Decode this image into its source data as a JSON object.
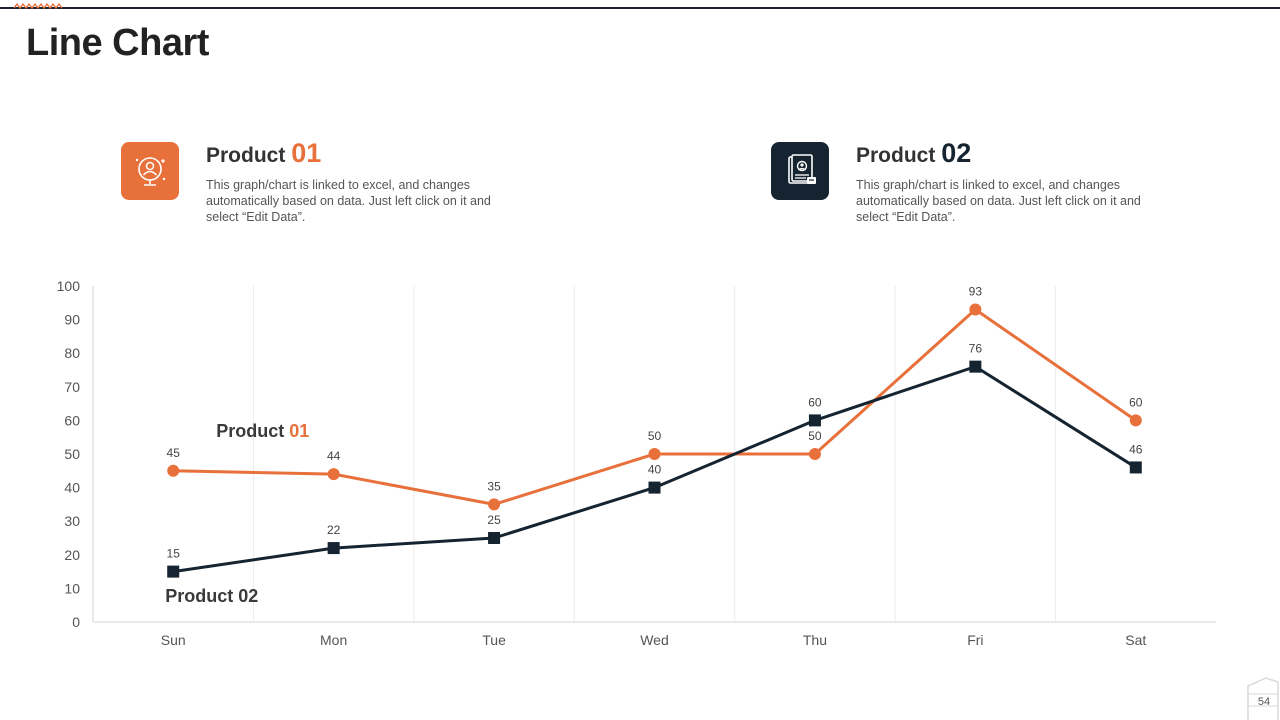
{
  "page": {
    "title": "Line Chart",
    "page_number": "54"
  },
  "cards": [
    {
      "label": "Product",
      "number": "01",
      "description": "This graph/chart is linked to excel, and changes automatically based on data. Just left click on it and select “Edit Data”.",
      "icon": "presentation-user-icon",
      "color": "#e8703a"
    },
    {
      "label": "Product",
      "number": "02",
      "description": "This graph/chart is linked to excel, and changes automatically based on data. Just left click on it and select “Edit Data”.",
      "icon": "profile-document-icon",
      "color": "#152430"
    }
  ],
  "chart_data": {
    "type": "line",
    "categories": [
      "Sun",
      "Mon",
      "Tue",
      "Wed",
      "Thu",
      "Fri",
      "Sat"
    ],
    "series": [
      {
        "name": "Product 01",
        "label": "Product",
        "label_num": "01",
        "values": [
          45,
          44,
          35,
          50,
          50,
          93,
          60
        ],
        "color": "#e8703a",
        "marker": "circle"
      },
      {
        "name": "Product 02",
        "label": "Product",
        "label_num": "02",
        "values": [
          15,
          22,
          25,
          40,
          60,
          76,
          46
        ],
        "color": "#152430",
        "marker": "square"
      }
    ],
    "ylim": [
      0,
      100
    ],
    "yticks": [
      0,
      10,
      20,
      30,
      40,
      50,
      60,
      70,
      80,
      90,
      100
    ],
    "grid": "vertical",
    "title": "",
    "xlabel": "",
    "ylabel": ""
  }
}
